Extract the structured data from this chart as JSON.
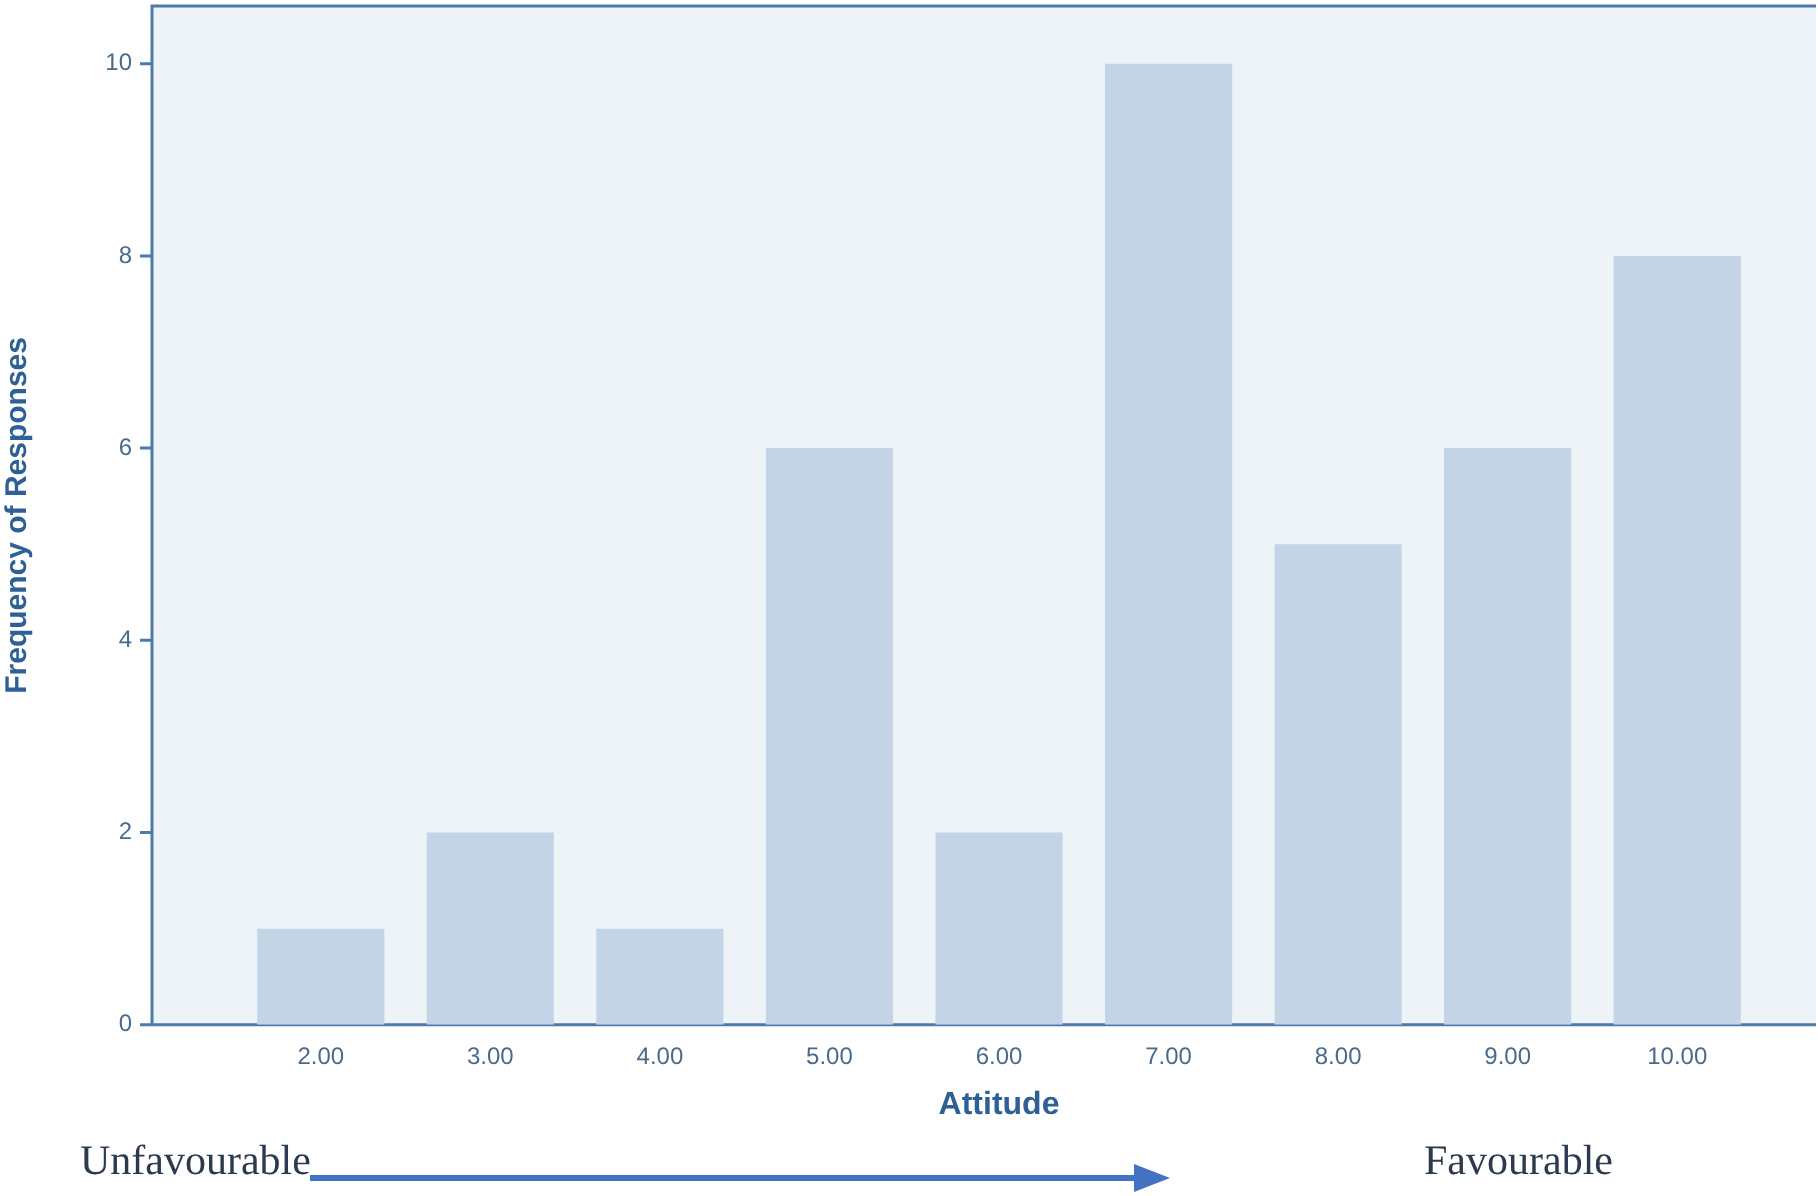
{
  "chart_data": {
    "type": "bar",
    "categories": [
      "2.00",
      "3.00",
      "4.00",
      "5.00",
      "6.00",
      "7.00",
      "8.00",
      "9.00",
      "10.00"
    ],
    "values": [
      1,
      2,
      1,
      6,
      2,
      10,
      5,
      6,
      8
    ],
    "color": "#c3d4e6",
    "xlabel": "Attitude",
    "ylabel": "Frequency of Responses",
    "ylim": [
      0,
      10.6
    ],
    "yticks": [
      0,
      2,
      4,
      6,
      8,
      10
    ],
    "grid": false,
    "legend": false,
    "annotations": [
      "Unfavourable",
      "Favourable"
    ]
  }
}
